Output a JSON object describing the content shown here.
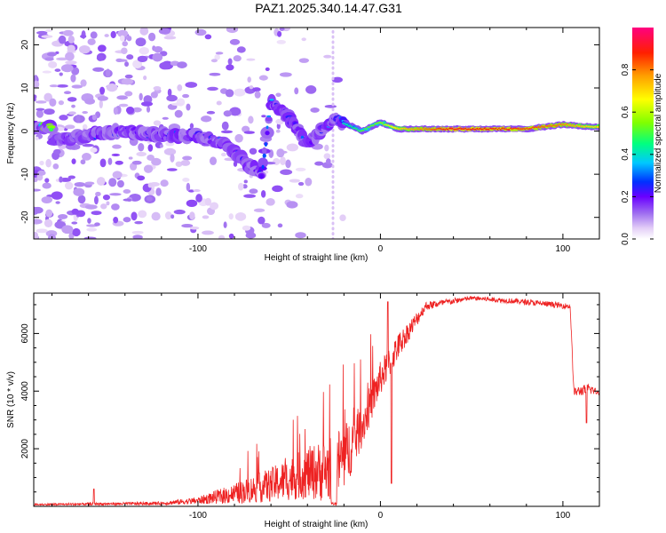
{
  "title": "PAZ1.2025.340.14.47.G31",
  "chart_data": [
    {
      "type": "heatmap",
      "title": "PAZ1.2025.340.14.47.G31",
      "xlabel": "Height of straight line (km)",
      "ylabel": "Frequency (Hz)",
      "xlim": [
        -190,
        120
      ],
      "ylim": [
        -25,
        24
      ],
      "xticks": [
        -100,
        0,
        100
      ],
      "yticks": [
        -20,
        -10,
        0,
        10,
        20
      ],
      "colorbar": {
        "label": "Normalized spectral amplitude",
        "range": [
          0,
          1
        ],
        "ticks": [
          0.0,
          0.2,
          0.4,
          0.6,
          0.8
        ],
        "tick_labels": [
          "0.0",
          "0.2",
          "0.4",
          "0.6",
          "0.8"
        ],
        "colors": [
          "#ffffff",
          "#e4cff7",
          "#a070f0",
          "#6a00ff",
          "#0030ff",
          "#00c8ff",
          "#00ff80",
          "#80ff00",
          "#ffff00",
          "#ffa000",
          "#ff2000",
          "#ff0080"
        ]
      },
      "ridge": {
        "description_points": [
          {
            "x": -180,
            "y": -2,
            "amp": 0.25
          },
          {
            "x": -160,
            "y": -1,
            "amp": 0.25
          },
          {
            "x": -140,
            "y": 0,
            "amp": 0.25
          },
          {
            "x": -120,
            "y": -1,
            "amp": 0.3
          },
          {
            "x": -100,
            "y": -1,
            "amp": 0.3
          },
          {
            "x": -85,
            "y": -3,
            "amp": 0.25
          },
          {
            "x": -75,
            "y": -7,
            "amp": 0.25
          },
          {
            "x": -65,
            "y": -10,
            "amp": 0.25
          },
          {
            "x": -60,
            "y": 7,
            "amp": 0.3
          },
          {
            "x": -50,
            "y": 3,
            "amp": 0.3
          },
          {
            "x": -40,
            "y": -3,
            "amp": 0.25
          },
          {
            "x": -25,
            "y": 3,
            "amp": 0.35
          },
          {
            "x": -10,
            "y": 0,
            "amp": 0.5
          },
          {
            "x": 0,
            "y": 2,
            "amp": 0.55
          },
          {
            "x": 10,
            "y": 0.5,
            "amp": 0.7
          },
          {
            "x": 40,
            "y": 0.5,
            "amp": 0.9
          },
          {
            "x": 80,
            "y": 0.5,
            "amp": 0.85
          },
          {
            "x": 100,
            "y": 1.5,
            "amp": 0.8
          },
          {
            "x": 115,
            "y": 1,
            "amp": 0.7
          }
        ]
      }
    },
    {
      "type": "line",
      "xlabel": "Height of straight line (km)",
      "ylabel": "SNR (10 * v/v)",
      "xlim": [
        -190,
        120
      ],
      "ylim": [
        0,
        7400
      ],
      "xticks": [
        -100,
        0,
        100
      ],
      "yticks": [
        2000,
        4000,
        6000
      ],
      "series": [
        {
          "name": "SNR",
          "color": "#ee2222",
          "envelope": [
            {
              "x": -190,
              "base": 50,
              "noise": 60
            },
            {
              "x": -120,
              "base": 80,
              "noise": 120
            },
            {
              "x": -100,
              "base": 150,
              "noise": 250
            },
            {
              "x": -80,
              "base": 300,
              "noise": 700
            },
            {
              "x": -60,
              "base": 500,
              "noise": 1200
            },
            {
              "x": -40,
              "base": 800,
              "noise": 1800
            },
            {
              "x": -30,
              "base": 800,
              "noise": 2200
            },
            {
              "x": -20,
              "base": 1200,
              "noise": 2400
            },
            {
              "x": -10,
              "base": 2500,
              "noise": 1500
            },
            {
              "x": 0,
              "base": 4200,
              "noise": 1200
            },
            {
              "x": 10,
              "base": 5400,
              "noise": 900
            },
            {
              "x": 25,
              "base": 6900,
              "noise": 300
            },
            {
              "x": 50,
              "base": 7200,
              "noise": 150
            },
            {
              "x": 80,
              "base": 7050,
              "noise": 200
            },
            {
              "x": 104,
              "base": 6900,
              "noise": 200
            },
            {
              "x": 106,
              "base": 3900,
              "noise": 300
            },
            {
              "x": 115,
              "base": 4000,
              "noise": 400
            },
            {
              "x": 120,
              "base": 3900,
              "noise": 100
            }
          ],
          "features": [
            {
              "x": -157,
              "value": 600
            },
            {
              "x": -26,
              "value": 100
            },
            {
              "x": 4,
              "value": 7100
            },
            {
              "x": 6,
              "value": 800
            },
            {
              "x": 113,
              "value": 2900
            }
          ]
        }
      ]
    }
  ]
}
